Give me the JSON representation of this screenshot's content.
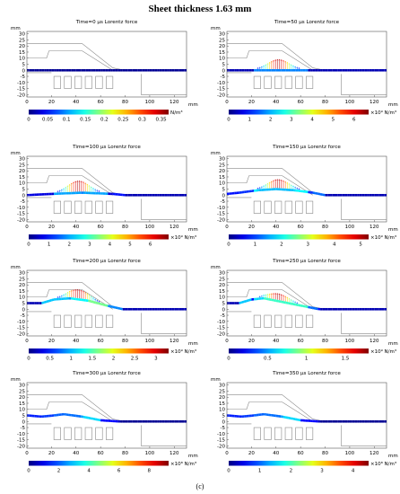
{
  "figure": {
    "title": "Sheet thickness 1.63 mm",
    "caption": "(c)"
  },
  "chart_data": [
    {
      "type": "heatmap",
      "title": "Time=0 µs  Lorentz force",
      "xunit": "mm",
      "yunit": "mm",
      "xlim": [
        0,
        130
      ],
      "ylim": [
        -22,
        32
      ],
      "xticks": [
        0,
        20,
        40,
        60,
        80,
        100,
        120
      ],
      "yticks": [
        30,
        25,
        20,
        15,
        10,
        5,
        0,
        -5,
        -10,
        -15,
        -20
      ],
      "sheet_profile": [
        [
          0,
          0
        ],
        [
          20,
          0
        ],
        [
          60,
          0
        ],
        [
          130,
          0
        ]
      ],
      "force_peak": 0,
      "colorbar": {
        "ticks": [
          "0",
          "0.05",
          "0.1",
          "0.15",
          "0.2",
          "0.25",
          "0.3",
          "0.35"
        ],
        "multiplier": "",
        "unit": "N/m³",
        "max": 0.37
      }
    },
    {
      "type": "heatmap",
      "title": "Time=50 µs  Lorentz force",
      "xunit": "mm",
      "yunit": "mm",
      "xlim": [
        0,
        130
      ],
      "ylim": [
        -22,
        32
      ],
      "xticks": [
        0,
        20,
        40,
        60,
        80,
        100,
        120
      ],
      "yticks": [
        30,
        25,
        20,
        15,
        10,
        5,
        0,
        -5,
        -10,
        -15,
        -20
      ],
      "sheet_profile": [
        [
          0,
          0
        ],
        [
          20,
          0
        ],
        [
          60,
          0
        ],
        [
          130,
          0
        ]
      ],
      "force_peak": 0.9,
      "colorbar": {
        "ticks": [
          "0",
          "1",
          "2",
          "3",
          "4",
          "5",
          "6"
        ],
        "multiplier": "×10⁹",
        "unit": "N/m³",
        "max": 6.7
      }
    },
    {
      "type": "heatmap",
      "title": "Time=100 µs  Lorentz force",
      "xunit": "mm",
      "yunit": "mm",
      "xlim": [
        0,
        130
      ],
      "ylim": [
        -22,
        32
      ],
      "xticks": [
        0,
        20,
        40,
        60,
        80,
        100,
        120
      ],
      "yticks": [
        30,
        25,
        20,
        15,
        10,
        5,
        0,
        -5,
        -10,
        -15,
        -20
      ],
      "sheet_profile": [
        [
          0,
          0
        ],
        [
          20,
          1
        ],
        [
          45,
          2
        ],
        [
          70,
          1
        ],
        [
          80,
          0
        ],
        [
          130,
          0
        ]
      ],
      "force_peak": 1,
      "colorbar": {
        "ticks": [
          "0",
          "1",
          "2",
          "3",
          "4",
          "5",
          "6"
        ],
        "multiplier": "×10⁹",
        "unit": "N/m³",
        "max": 6.9
      }
    },
    {
      "type": "heatmap",
      "title": "Time=150 µs  Lorentz force",
      "xunit": "mm",
      "yunit": "mm",
      "xlim": [
        0,
        130
      ],
      "ylim": [
        -22,
        32
      ],
      "xticks": [
        0,
        20,
        40,
        60,
        80,
        100,
        120
      ],
      "yticks": [
        30,
        25,
        20,
        15,
        10,
        5,
        0,
        -5,
        -10,
        -15,
        -20
      ],
      "sheet_profile": [
        [
          0,
          1
        ],
        [
          10,
          2
        ],
        [
          25,
          4
        ],
        [
          40,
          5
        ],
        [
          55,
          4
        ],
        [
          70,
          2
        ],
        [
          80,
          0
        ],
        [
          130,
          0
        ]
      ],
      "force_peak": 0.8,
      "colorbar": {
        "ticks": [
          "0",
          "1",
          "2",
          "3",
          "4",
          "5"
        ],
        "multiplier": "×10⁹",
        "unit": "N/m³",
        "max": 5.3
      }
    },
    {
      "type": "heatmap",
      "title": "Time=200 µs  Lorentz force",
      "xunit": "mm",
      "yunit": "mm",
      "xlim": [
        0,
        130
      ],
      "ylim": [
        -22,
        32
      ],
      "xticks": [
        0,
        20,
        40,
        60,
        80,
        100,
        120
      ],
      "yticks": [
        30,
        25,
        20,
        15,
        10,
        5,
        0,
        -5,
        -10,
        -15,
        -20
      ],
      "sheet_profile": [
        [
          0,
          5
        ],
        [
          12,
          5
        ],
        [
          22,
          8
        ],
        [
          35,
          9
        ],
        [
          50,
          7
        ],
        [
          65,
          3
        ],
        [
          78,
          0
        ],
        [
          130,
          0
        ]
      ],
      "force_peak": 0.8,
      "colorbar": {
        "ticks": [
          "0",
          "0.5",
          "1",
          "1.5",
          "2",
          "2.5",
          "3"
        ],
        "multiplier": "×10⁹",
        "unit": "N/m³",
        "max": 3.3
      }
    },
    {
      "type": "heatmap",
      "title": "Time=250 µs  Lorentz force",
      "xunit": "mm",
      "yunit": "mm",
      "xlim": [
        0,
        130
      ],
      "ylim": [
        -22,
        32
      ],
      "xticks": [
        0,
        20,
        40,
        60,
        80,
        100,
        120
      ],
      "yticks": [
        30,
        25,
        20,
        15,
        10,
        5,
        0,
        -5,
        -10,
        -15,
        -20
      ],
      "sheet_profile": [
        [
          0,
          5
        ],
        [
          10,
          5
        ],
        [
          20,
          8
        ],
        [
          30,
          9
        ],
        [
          45,
          6
        ],
        [
          60,
          3
        ],
        [
          75,
          0
        ],
        [
          130,
          0
        ]
      ],
      "force_peak": 0.6,
      "colorbar": {
        "ticks": [
          "0",
          "0.5",
          "1",
          "1.5"
        ],
        "multiplier": "×10⁹",
        "unit": "N/m³",
        "max": 1.8
      }
    },
    {
      "type": "heatmap",
      "title": "Time=300 µs  Lorentz force",
      "xunit": "mm",
      "yunit": "mm",
      "xlim": [
        0,
        130
      ],
      "ylim": [
        -22,
        32
      ],
      "xticks": [
        0,
        20,
        40,
        60,
        80,
        100,
        120
      ],
      "yticks": [
        30,
        25,
        20,
        15,
        10,
        5,
        0,
        -5,
        -10,
        -15,
        -20
      ],
      "sheet_profile": [
        [
          0,
          5
        ],
        [
          12,
          4
        ],
        [
          22,
          5
        ],
        [
          30,
          6
        ],
        [
          45,
          4
        ],
        [
          60,
          1
        ],
        [
          75,
          0
        ],
        [
          130,
          0
        ]
      ],
      "force_peak": 0,
      "colorbar": {
        "ticks": [
          "0",
          "2",
          "4",
          "6",
          "8"
        ],
        "multiplier": "×10⁸",
        "unit": "N/m³",
        "max": 9.3
      }
    },
    {
      "type": "heatmap",
      "title": "Time=350 µs  Lorentz force",
      "xunit": "mm",
      "yunit": "mm",
      "xlim": [
        0,
        130
      ],
      "ylim": [
        -22,
        32
      ],
      "xticks": [
        0,
        20,
        40,
        60,
        80,
        100,
        120
      ],
      "yticks": [
        30,
        25,
        20,
        15,
        10,
        5,
        0,
        -5,
        -10,
        -15,
        -20
      ],
      "sheet_profile": [
        [
          0,
          5
        ],
        [
          12,
          4
        ],
        [
          22,
          5
        ],
        [
          30,
          6
        ],
        [
          45,
          4
        ],
        [
          60,
          1
        ],
        [
          75,
          0
        ],
        [
          130,
          0
        ]
      ],
      "force_peak": 0,
      "colorbar": {
        "ticks": [
          "0",
          "1",
          "2",
          "3",
          "4"
        ],
        "multiplier": "×10⁸",
        "unit": "N/m³",
        "max": 4.5
      }
    }
  ]
}
